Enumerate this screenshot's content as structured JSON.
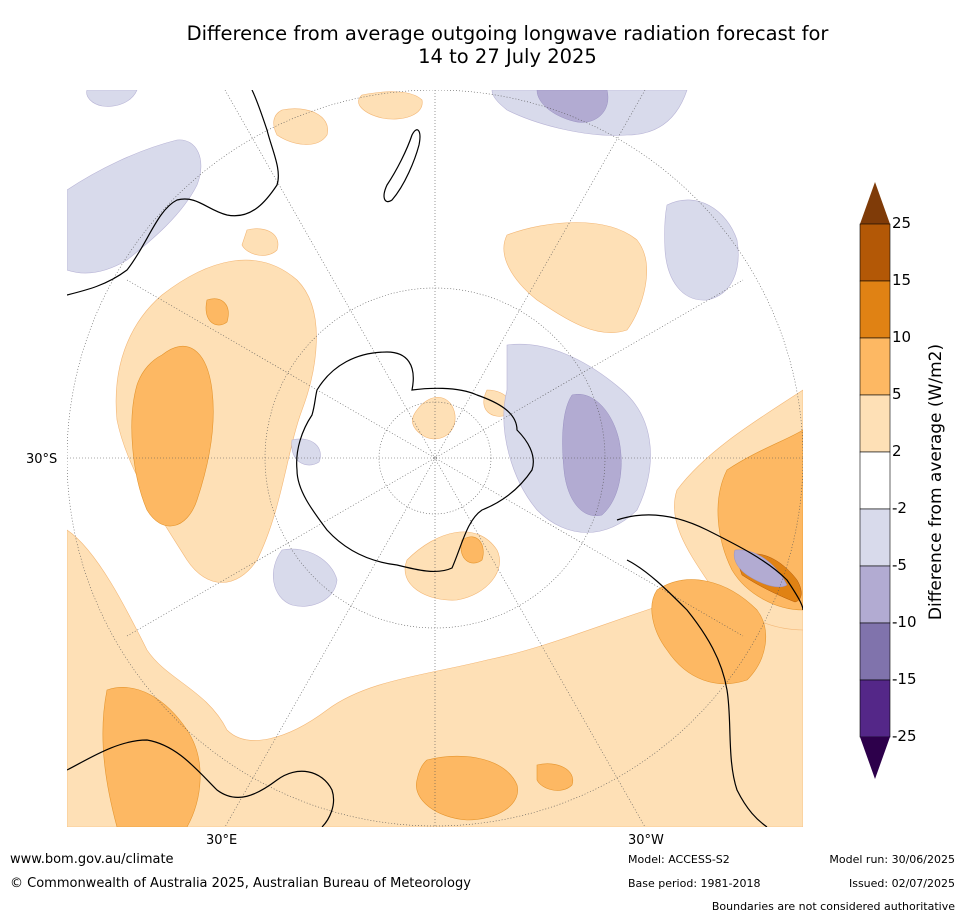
{
  "title_line1": "Difference from average outgoing longwave radiation forecast for",
  "title_line2": "14 to 27 July 2025",
  "map": {
    "lat_label": "30°S",
    "lon_labels": [
      "30°E",
      "30°W"
    ]
  },
  "colorbar": {
    "title": "Difference from average (W/m2)",
    "ticks": [
      "25",
      "15",
      "10",
      "5",
      "2",
      "-2",
      "-5",
      "-10",
      "-15",
      "-25"
    ],
    "colors": [
      "#7f3b08",
      "#b35806",
      "#e08214",
      "#fdb863",
      "#fee0b6",
      "#ffffff",
      "#d8daeb",
      "#b2abd2",
      "#8073ac",
      "#542788",
      "#2d004b"
    ]
  },
  "footer": {
    "website": "www.bom.gov.au/climate",
    "copyright": "© Commonwealth of Australia 2025, Australian Bureau of Meteorology",
    "model": "Model: ACCESS-S2",
    "base_period": "Base period: 1981-2018",
    "model_run": "Model run: 30/06/2025",
    "issued": "Issued: 02/07/2025",
    "disclaimer": "Boundaries are not considered authoritative"
  }
}
